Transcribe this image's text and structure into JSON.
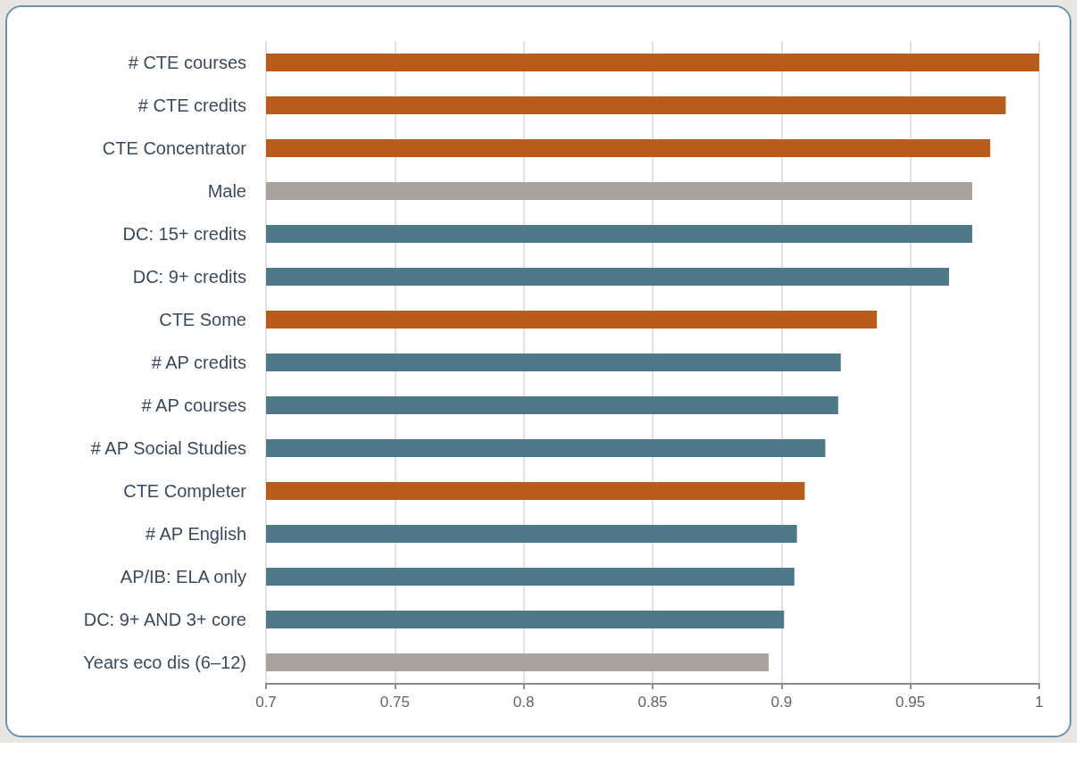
{
  "chart_data": {
    "type": "bar",
    "orientation": "horizontal",
    "categories": [
      "# CTE courses",
      "# CTE credits",
      "CTE Concentrator",
      "Male",
      "DC: 15+ credits",
      "DC: 9+ credits",
      "CTE Some",
      "# AP credits",
      "# AP courses",
      "# AP Social Studies",
      "CTE Completer",
      "# AP English",
      "AP/IB: ELA only",
      "DC: 9+ AND 3+ core",
      "Years eco dis (6–12)"
    ],
    "values": [
      1.0,
      0.987,
      0.981,
      0.974,
      0.974,
      0.965,
      0.937,
      0.923,
      0.922,
      0.917,
      0.909,
      0.906,
      0.905,
      0.901,
      0.895
    ],
    "colors": [
      "#b85c1e",
      "#b85c1e",
      "#b85c1e",
      "#a8a49d",
      "#4f7889",
      "#4f7889",
      "#b85c1e",
      "#4f7889",
      "#4f7889",
      "#4f7889",
      "#b85c1e",
      "#4f7889",
      "#4f7889",
      "#4f7889",
      "#a8a49d"
    ],
    "xlim": [
      0.7,
      1
    ],
    "xticks": [
      0.7,
      0.75,
      0.8,
      0.85,
      0.9,
      0.95,
      1
    ],
    "grid": "x"
  }
}
